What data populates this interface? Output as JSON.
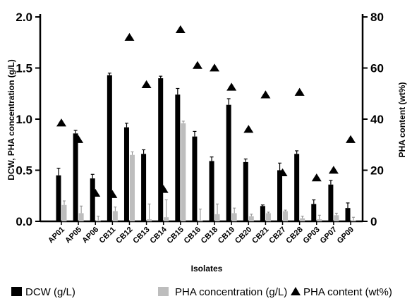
{
  "chart_data": {
    "type": "bar",
    "xlabel": "Isolates",
    "ylabel": "DCW, PHA concentration (g/L)",
    "ylabel_right": "PHA content (wt%)",
    "ylim": [
      0,
      2.0
    ],
    "ylim_right": [
      0,
      80
    ],
    "yticks": [
      "0.0",
      "0.5",
      "1.0",
      "1.5",
      "2.0"
    ],
    "yticks_right": [
      "0",
      "20",
      "40",
      "60",
      "80"
    ],
    "legend_position": "bottom",
    "categories": [
      "AP01",
      "AP05",
      "AP06",
      "CB11",
      "CB12",
      "CB13",
      "CB14",
      "CB15",
      "CB16",
      "CB18",
      "CB19",
      "CB20",
      "CB21",
      "CB27",
      "CB28",
      "GP03",
      "GP07",
      "GP09"
    ],
    "series": [
      {
        "name": "DCW (g/L)",
        "type": "bar",
        "axis": "left",
        "color": "#000000",
        "values": [
          0.45,
          0.86,
          0.42,
          1.43,
          0.92,
          0.66,
          1.4,
          1.24,
          0.83,
          0.59,
          1.14,
          0.58,
          0.15,
          0.5,
          0.66,
          0.17,
          0.36,
          0.13
        ],
        "errors": [
          0.07,
          0.03,
          0.04,
          0.02,
          0.04,
          0.04,
          0.02,
          0.06,
          0.05,
          0.04,
          0.06,
          0.03,
          0.01,
          0.07,
          0.03,
          0.04,
          0.04,
          0.05
        ]
      },
      {
        "name": "PHA concentration (g/L)",
        "type": "bar",
        "axis": "left",
        "color": "#bdbdbd",
        "values": [
          0.16,
          0.08,
          0.01,
          0.1,
          0.65,
          0.02,
          0.04,
          0.96,
          0.01,
          0.07,
          0.08,
          0.05,
          0.08,
          0.1,
          0.03,
          0.02,
          0.06,
          0.01
        ],
        "errors": [
          0.04,
          0.07,
          0.04,
          0.04,
          0.03,
          0.15,
          0.17,
          0.02,
          0.11,
          0.1,
          0.05,
          0.02,
          0.01,
          0.01,
          0.02,
          0.04,
          0.02,
          0.03
        ]
      },
      {
        "name": "PHA content (wt%)",
        "type": "scatter",
        "marker": "triangle",
        "axis": "right",
        "color": "#000000",
        "values": [
          38.5,
          32,
          11,
          10.5,
          72,
          53.5,
          12.5,
          75,
          61,
          60,
          52.5,
          36,
          49.5,
          19,
          50.5,
          17,
          20,
          32
        ]
      }
    ]
  }
}
